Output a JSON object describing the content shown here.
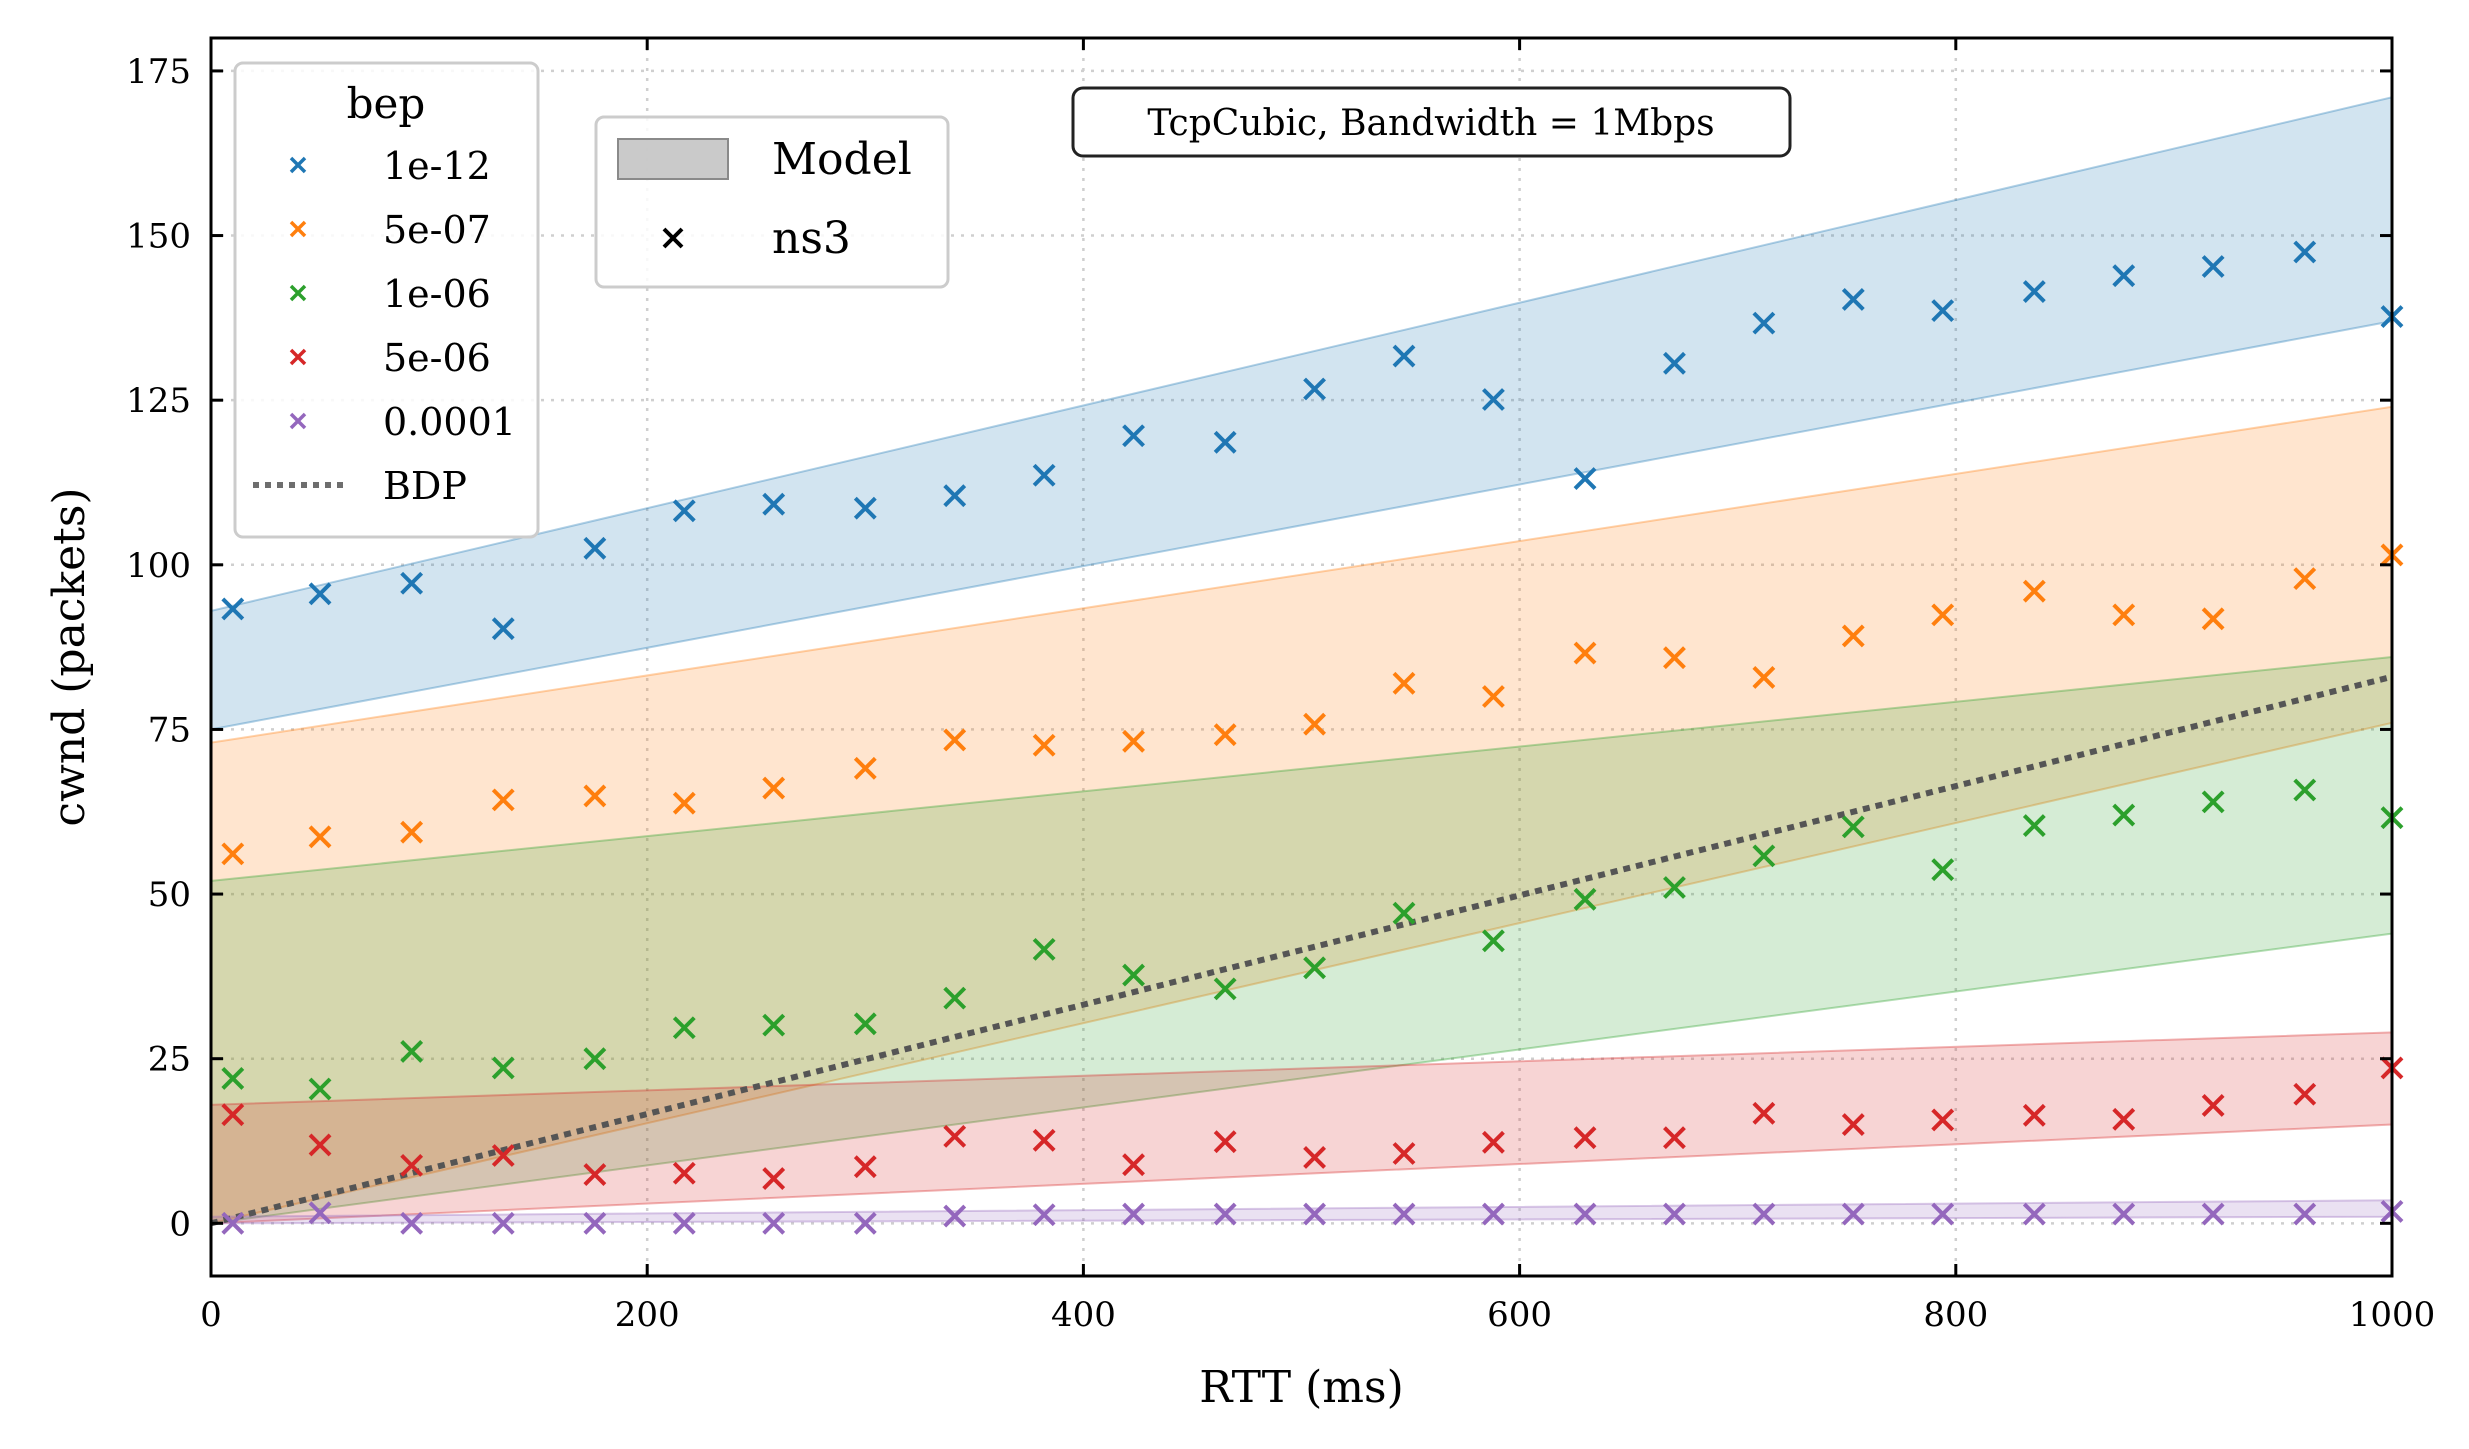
{
  "chart_data": {
    "type": "scatter",
    "annotation": "TcpCubic, Bandwidth = 1Mbps",
    "xlabel": "RTT (ms)",
    "ylabel": "cwnd (packets)",
    "xlim": [
      0,
      1000
    ],
    "ylim": [
      -8,
      180
    ],
    "xticks": [
      0,
      200,
      400,
      600,
      800,
      1000
    ],
    "yticks": [
      0,
      25,
      50,
      75,
      100,
      125,
      150,
      175
    ],
    "grid": true,
    "legend_title": "bep",
    "legend_placement": "top-left",
    "model_legend": {
      "model_label": "Model",
      "ns3_label": "ns3"
    },
    "x": [
      10,
      50,
      92,
      134,
      176,
      217,
      258,
      300,
      341,
      382,
      423,
      465,
      506,
      547,
      588,
      630,
      671,
      712,
      753,
      794,
      836,
      877,
      918,
      960,
      1000
    ],
    "series": [
      {
        "name": "1e-12",
        "color": "#1f77b4",
        "values": [
          93.3,
          95.6,
          97.2,
          90.3,
          102.5,
          108.2,
          109.2,
          108.6,
          110.5,
          113.6,
          119.6,
          118.6,
          126.7,
          131.7,
          125.1,
          113.1,
          130.6,
          136.7,
          140.3,
          138.6,
          141.5,
          143.9,
          145.3,
          147.5,
          137.7
        ],
        "band_lower": [
          75,
          137
        ],
        "band_upper": [
          93,
          171
        ]
      },
      {
        "name": "5e-07",
        "color": "#ff7f0e",
        "values": [
          56.1,
          58.7,
          59.4,
          64.3,
          64.9,
          63.8,
          66.1,
          69.1,
          73.4,
          72.6,
          73.2,
          74.2,
          75.8,
          82.0,
          80.0,
          86.6,
          85.9,
          82.9,
          89.2,
          92.4,
          96.0,
          92.4,
          91.8,
          97.9,
          101.5
        ],
        "band_lower": [
          0,
          76
        ],
        "band_upper": [
          73,
          124
        ]
      },
      {
        "name": "1e-06",
        "color": "#2ca02c",
        "values": [
          22.0,
          20.4,
          26.1,
          23.6,
          25.0,
          29.7,
          30.1,
          30.3,
          34.2,
          41.6,
          37.7,
          35.6,
          38.8,
          47.1,
          42.9,
          49.2,
          51.0,
          55.8,
          60.2,
          53.7,
          60.4,
          62.0,
          64.0,
          65.8,
          61.6
        ],
        "band_lower": [
          0,
          44
        ],
        "band_upper": [
          52,
          86
        ]
      },
      {
        "name": "5e-06",
        "color": "#d62728",
        "values": [
          16.5,
          11.9,
          8.8,
          10.3,
          7.4,
          7.6,
          6.8,
          8.6,
          13.2,
          12.6,
          8.9,
          12.4,
          10.0,
          10.6,
          12.3,
          13.0,
          13.0,
          16.7,
          15.0,
          15.7,
          16.4,
          15.8,
          17.9,
          19.6,
          23.6
        ],
        "band_lower": [
          0,
          15
        ],
        "band_upper": [
          18,
          29
        ]
      },
      {
        "name": "0.0001",
        "color": "#9467bd",
        "values": [
          0.0,
          1.6,
          0.0,
          0.0,
          0.0,
          0.0,
          0.0,
          0.0,
          1.1,
          1.3,
          1.4,
          1.4,
          1.4,
          1.4,
          1.4,
          1.4,
          1.4,
          1.4,
          1.4,
          1.4,
          1.4,
          1.4,
          1.4,
          1.4,
          1.8
        ],
        "band_lower": [
          0,
          1
        ],
        "band_upper": [
          1,
          3.5
        ]
      }
    ],
    "bdp": {
      "name": "BDP",
      "color": "#6e6e6e",
      "x": [
        0,
        1000
      ],
      "values": [
        0,
        83
      ]
    }
  }
}
